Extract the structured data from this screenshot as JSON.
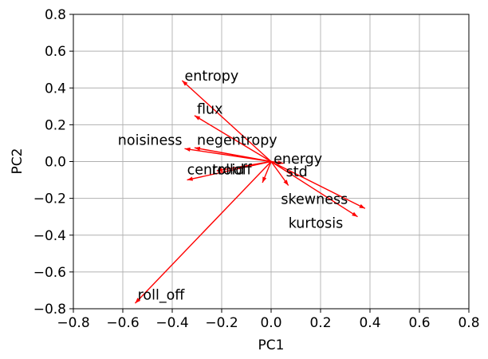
{
  "chart_data": {
    "type": "biplot",
    "title": "",
    "xlabel": "PC1",
    "ylabel": "PC2",
    "xlim": [
      -0.8,
      0.8
    ],
    "ylim": [
      -0.8,
      0.8
    ],
    "xticks": [
      -0.8,
      -0.6,
      -0.4,
      -0.2,
      0.0,
      0.2,
      0.4,
      0.6,
      0.8
    ],
    "yticks": [
      -0.8,
      -0.6,
      -0.4,
      -0.2,
      0.0,
      0.2,
      0.4,
      0.6,
      0.8
    ],
    "xtick_labels": [
      "−0.8",
      "−0.6",
      "−0.4",
      "−0.2",
      "0.0",
      "0.2",
      "0.4",
      "0.6",
      "0.8"
    ],
    "ytick_labels": [
      "−0.8",
      "−0.6",
      "−0.4",
      "−0.2",
      "0.0",
      "0.2",
      "0.4",
      "0.6",
      "0.8"
    ],
    "grid": true,
    "arrow_color": "#ff0000",
    "vectors": [
      {
        "name": "entropy",
        "x": -0.36,
        "y": 0.44,
        "label_x": -0.35,
        "label_y": 0.44
      },
      {
        "name": "flux",
        "x": -0.31,
        "y": 0.25,
        "label_x": -0.3,
        "label_y": 0.26
      },
      {
        "name": "noisiness",
        "x": -0.35,
        "y": 0.07,
        "label_x": -0.62,
        "label_y": 0.09
      },
      {
        "name": "negentropy",
        "x": -0.31,
        "y": 0.075,
        "label_x": -0.3,
        "label_y": 0.09
      },
      {
        "name": "centroid",
        "x": -0.34,
        "y": -0.1,
        "label_x": -0.34,
        "label_y": -0.07
      },
      {
        "name": "rolloff",
        "x": -0.22,
        "y": -0.05,
        "label_x": -0.24,
        "label_y": -0.07
      },
      {
        "name": "roll_off",
        "x": -0.55,
        "y": -0.77,
        "label_x": -0.54,
        "label_y": -0.75
      },
      {
        "name": "energy",
        "x": 0.05,
        "y": -0.01,
        "label_x": 0.01,
        "label_y": -0.01
      },
      {
        "name": "std",
        "x": 0.07,
        "y": -0.13,
        "label_x": 0.06,
        "label_y": -0.08
      },
      {
        "name": "skewness",
        "x": 0.38,
        "y": -0.255,
        "label_x": 0.04,
        "label_y": -0.23
      },
      {
        "name": "kurtosis",
        "x": 0.35,
        "y": -0.3,
        "label_x": 0.07,
        "label_y": -0.36
      },
      {
        "name": "",
        "x": -0.035,
        "y": -0.115,
        "label_x": 0,
        "label_y": 0
      }
    ]
  }
}
